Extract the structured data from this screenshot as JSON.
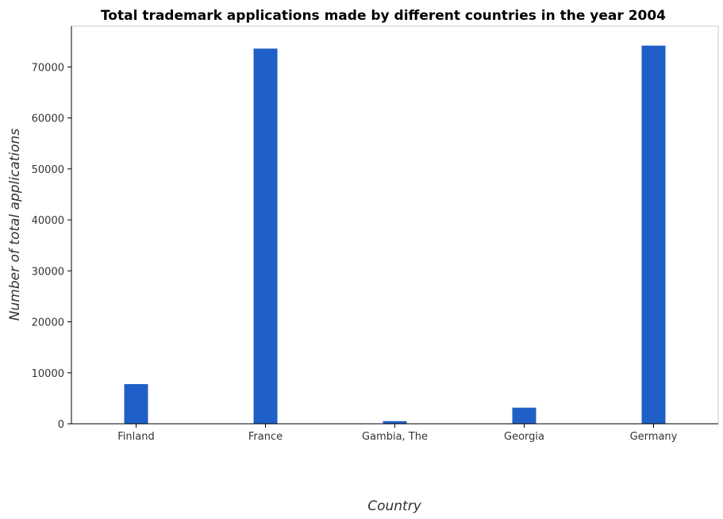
{
  "chart_data": {
    "type": "bar",
    "title": "Total trademark applications made by different countries in the year 2004",
    "xlabel": "Country",
    "ylabel": "Number of total applications",
    "categories": [
      "Finland",
      "France",
      "Gambia, The",
      "Georgia",
      "Germany"
    ],
    "values": [
      7780,
      73600,
      520,
      3160,
      74180
    ],
    "ylim": [
      0,
      78000
    ],
    "yticks": [
      0,
      10000,
      20000,
      30000,
      40000,
      50000,
      60000,
      70000
    ],
    "grid": false,
    "legend": "none",
    "colors": {
      "bar": "#1f5fc7"
    }
  }
}
